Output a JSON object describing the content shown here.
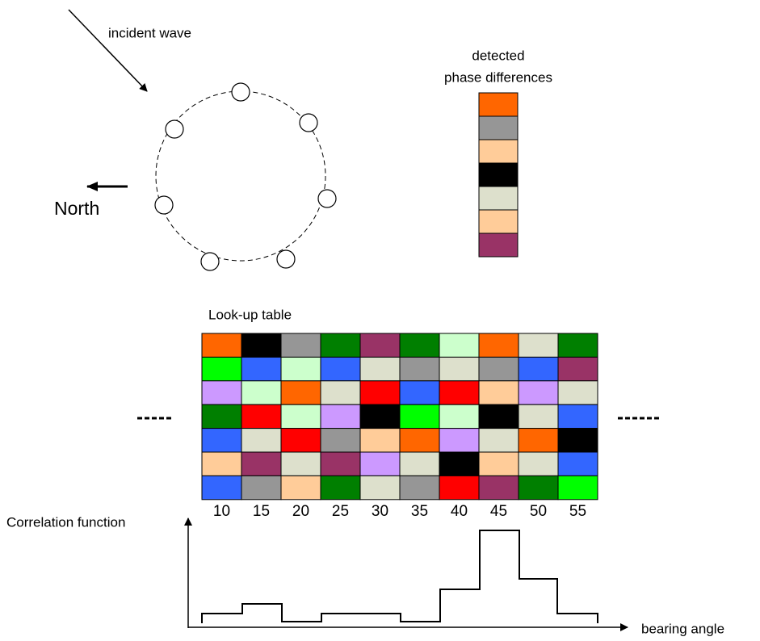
{
  "array": {
    "incident_label": "incident wave",
    "north_label": "North"
  },
  "detected": {
    "title_line1": "detected",
    "title_line2": "phase differences",
    "colors": [
      "#ff6600",
      "#969696",
      "#ffcc99",
      "#000000",
      "#dde0cc",
      "#ffcc99",
      "#993366"
    ]
  },
  "lookup_table": {
    "title": "Look-up table",
    "columns": [
      10,
      15,
      20,
      25,
      30,
      35,
      40,
      45,
      50,
      55
    ],
    "rows": [
      [
        "#ff6600",
        "#000000",
        "#969696",
        "#007f00",
        "#993366",
        "#007f00",
        "#ccffcc",
        "#ff6600",
        "#dde0cc",
        "#007f00"
      ],
      [
        "#00ff00",
        "#3366ff",
        "#ccffcc",
        "#3366ff",
        "#dde0cc",
        "#969696",
        "#dde0cc",
        "#969696",
        "#3366ff",
        "#993366"
      ],
      [
        "#cc99ff",
        "#ccffcc",
        "#ff6600",
        "#dde0cc",
        "#ff0000",
        "#3366ff",
        "#ff0000",
        "#ffcc99",
        "#cc99ff",
        "#dde0cc"
      ],
      [
        "#007f00",
        "#ff0000",
        "#ccffcc",
        "#cc99ff",
        "#000000",
        "#00ff00",
        "#ccffcc",
        "#000000",
        "#dde0cc",
        "#3366ff"
      ],
      [
        "#3366ff",
        "#dde0cc",
        "#ff0000",
        "#969696",
        "#ffcc99",
        "#ff6600",
        "#cc99ff",
        "#dde0cc",
        "#ff6600",
        "#000000"
      ],
      [
        "#ffcc99",
        "#993366",
        "#dde0cc",
        "#993366",
        "#cc99ff",
        "#dde0cc",
        "#000000",
        "#ffcc99",
        "#dde0cc",
        "#3366ff"
      ],
      [
        "#3366ff",
        "#969696",
        "#ffcc99",
        "#007f00",
        "#dde0cc",
        "#969696",
        "#ff0000",
        "#993366",
        "#007f00",
        "#00ff00"
      ]
    ]
  },
  "correlation": {
    "y_label": "Correlation function",
    "x_label": "bearing angle"
  }
}
